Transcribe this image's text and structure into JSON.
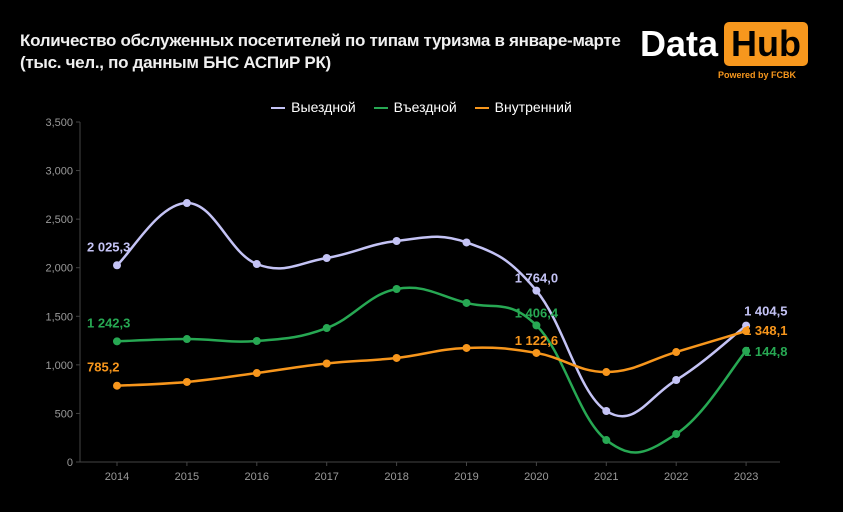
{
  "title": {
    "line1": "Количество обслуженных посетителей по типам туризма в январе-марте",
    "line2": "(тыс. чел., по данным БНС АСПиР РК)"
  },
  "logo": {
    "data": "Data",
    "hub": "Hub",
    "powered": "Powered by FCBK"
  },
  "chart_data": {
    "type": "line",
    "categories": [
      "2014",
      "2015",
      "2016",
      "2017",
      "2018",
      "2019",
      "2020",
      "2021",
      "2022",
      "2023"
    ],
    "ylim": [
      0,
      3500
    ],
    "yticks": [
      "0",
      "500",
      "1,000",
      "1,500",
      "2,000",
      "2,500",
      "3,000",
      "3,500"
    ],
    "grid": false,
    "legend": "top",
    "series": [
      {
        "name": "Выездной",
        "color": "#c4c3f5",
        "values": [
          2025.3,
          2666,
          2038,
          2100,
          2275,
          2260,
          1764.0,
          525,
          844,
          1404.5
        ],
        "labels": {
          "0": "2 025,3",
          "6": "1 764,0",
          "9": "1 404,5"
        }
      },
      {
        "name": "Въездной",
        "color": "#27a853",
        "values": [
          1242.3,
          1266,
          1246,
          1379,
          1781,
          1637,
          1406.4,
          226,
          288,
          1144.8
        ],
        "labels": {
          "0": "1 242,3",
          "6": "1 406,4",
          "9": "1 144,8"
        }
      },
      {
        "name": "Внутренний",
        "color": "#f7961c",
        "values": [
          785.2,
          824,
          916,
          1014,
          1071,
          1174,
          1122.6,
          926,
          1132,
          1348.1
        ],
        "labels": {
          "0": "785,2",
          "6": "1 122,6",
          "9": "1 348,1"
        }
      }
    ]
  }
}
